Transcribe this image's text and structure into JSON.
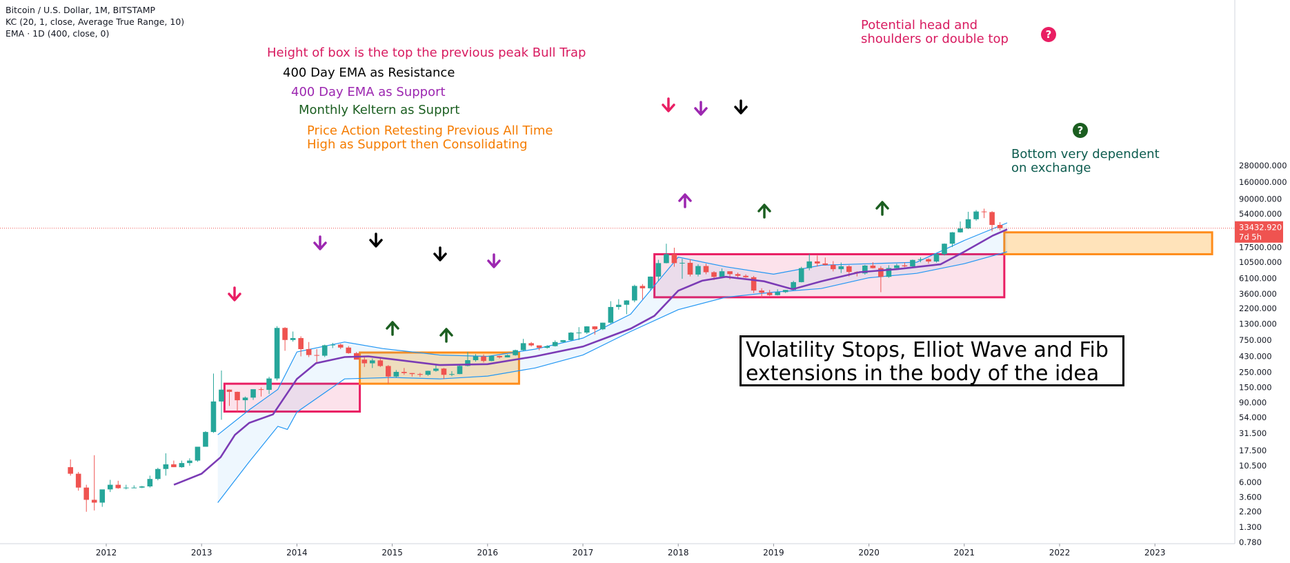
{
  "legend": {
    "symbol": "Bitcoin / U.S. Dollar, 1M, BITSTAMP",
    "kc": "KC (20, 1, close, Average True Range, 10)",
    "ema": "EMA · 1D (400, close, 0)"
  },
  "annotations": {
    "bull_trap": "Height of box is the top the previous peak Bull Trap",
    "ema_resistance": "400 Day EMA as Resistance",
    "ema_support": "400 Day EMA as Support",
    "keltner_support": "Monthly Keltern as Supprt",
    "retest_line1": "Price Action Retesting Previous All Time",
    "retest_line2": "High as Support then Consolidating",
    "hs_line1": "Potential head and",
    "hs_line2": "shoulders or double top",
    "bottom_line1": "Bottom very dependent",
    "bottom_line2": "on exchange",
    "note_line1": "Volatility Stops, Elliot Wave and Fib",
    "note_line2": "extensions in the body of the idea",
    "question_mark": "?"
  },
  "colors": {
    "bull": "#26a69a",
    "bear": "#ef5350",
    "ema": "#7b3bb5",
    "keltner": "#2196f3",
    "pink": "#e91e63",
    "orange": "#ff8c1a",
    "purple_text": "#9c27b0",
    "green_text": "#1b5e20",
    "teal_text": "#0d5c4f",
    "axis_text": "#131722"
  },
  "price_label": {
    "value": "33432.920",
    "countdown": "7d 5h"
  },
  "chart_data": {
    "type": "candlestick",
    "title": "Bitcoin / U.S. Dollar, 1M, BITSTAMP",
    "y_scale": "log",
    "y_ticks": [
      "280000.000",
      "160000.000",
      "90000.000",
      "54000.000",
      "33432.920",
      "17500.000",
      "10500.000",
      "6100.000",
      "3600.000",
      "2200.000",
      "1300.000",
      "750.000",
      "430.000",
      "250.000",
      "150.000",
      "90.000",
      "54.000",
      "31.500",
      "17.500",
      "10.500",
      "6.000",
      "3.600",
      "2.200",
      "1.300",
      "0.780"
    ],
    "x_ticks": [
      "2012",
      "2013",
      "2014",
      "2015",
      "2016",
      "2017",
      "2018",
      "2019",
      "2020",
      "2021",
      "2022",
      "2023"
    ],
    "start": "2011-08",
    "candles": [
      [
        10.0,
        13.0,
        7.5,
        8.0
      ],
      [
        8.0,
        8.5,
        4.5,
        5.0
      ],
      [
        5.0,
        5.5,
        2.2,
        3.3
      ],
      [
        3.3,
        15.0,
        2.3,
        3.0
      ],
      [
        3.0,
        4.5,
        2.6,
        4.7
      ],
      [
        4.7,
        6.5,
        4.3,
        5.5
      ],
      [
        5.5,
        6.3,
        4.8,
        4.9
      ],
      [
        4.9,
        5.5,
        4.7,
        5.0
      ],
      [
        5.0,
        5.4,
        4.9,
        5.0
      ],
      [
        5.0,
        5.3,
        4.9,
        5.2
      ],
      [
        5.2,
        7.5,
        5.0,
        6.7
      ],
      [
        6.7,
        9.8,
        6.4,
        9.4
      ],
      [
        9.4,
        16.0,
        7.5,
        11.0
      ],
      [
        11.0,
        12.5,
        10.0,
        10.0
      ],
      [
        10.0,
        12.5,
        9.8,
        11.5
      ],
      [
        11.5,
        13.5,
        10.5,
        12.5
      ],
      [
        12.5,
        20.0,
        12.0,
        20.0
      ],
      [
        20.0,
        34.0,
        20.0,
        33.0
      ],
      [
        33.0,
        240.0,
        32.0,
        93.0
      ],
      [
        93.0,
        266.0,
        50.0,
        139.0
      ],
      [
        139.0,
        140.0,
        80.0,
        129.0
      ],
      [
        129.0,
        130.0,
        65.0,
        97.0
      ],
      [
        97.0,
        110.0,
        66.0,
        106.0
      ],
      [
        106.0,
        140.0,
        98.0,
        141.0
      ],
      [
        141.0,
        150.0,
        110.0,
        138.0
      ],
      [
        138.0,
        215.0,
        120.0,
        203.0
      ],
      [
        203.0,
        1200.0,
        190.0,
        1130.0
      ],
      [
        1130.0,
        1160.0,
        520.0,
        750.0
      ],
      [
        750.0,
        1000.0,
        710.0,
        800.0
      ],
      [
        800.0,
        850.0,
        430.0,
        550.0
      ],
      [
        550.0,
        700.0,
        420.0,
        450.0
      ],
      [
        450.0,
        550.0,
        350.0,
        440.0
      ],
      [
        440.0,
        640.0,
        420.0,
        627.0
      ],
      [
        627.0,
        680.0,
        570.0,
        640.0
      ],
      [
        640.0,
        660.0,
        550.0,
        580.0
      ],
      [
        580.0,
        610.0,
        470.0,
        480.0
      ],
      [
        480.0,
        500.0,
        400.0,
        385.0
      ],
      [
        385.0,
        425.0,
        300.0,
        340.0
      ],
      [
        340.0,
        400.0,
        290.0,
        375.0
      ],
      [
        375.0,
        400.0,
        300.0,
        310.0
      ],
      [
        310.0,
        320.0,
        170.0,
        217.0
      ],
      [
        217.0,
        270.0,
        210.0,
        254.0
      ],
      [
        254.0,
        290.0,
        230.0,
        244.0
      ],
      [
        244.0,
        245.0,
        217.0,
        236.0
      ],
      [
        236.0,
        246.0,
        215.0,
        230.0
      ],
      [
        230.0,
        265.0,
        222.0,
        263.0
      ],
      [
        263.0,
        320.0,
        255.0,
        284.0
      ],
      [
        284.0,
        290.0,
        199.0,
        230.0
      ],
      [
        230.0,
        260.0,
        220.0,
        236.0
      ],
      [
        236.0,
        330.0,
        235.0,
        311.0
      ],
      [
        311.0,
        500.0,
        306.0,
        378.0
      ],
      [
        378.0,
        465.0,
        360.0,
        430.0
      ],
      [
        430.0,
        460.0,
        350.0,
        368.0
      ],
      [
        368.0,
        440.0,
        365.0,
        436.0
      ],
      [
        436.0,
        440.0,
        400.0,
        416.0
      ],
      [
        416.0,
        460.0,
        415.0,
        448.0
      ],
      [
        448.0,
        540.0,
        440.0,
        531.0
      ],
      [
        531.0,
        780.0,
        520.0,
        673.0
      ],
      [
        673.0,
        700.0,
        600.0,
        624.0
      ],
      [
        624.0,
        620.0,
        530.0,
        575.0
      ],
      [
        575.0,
        630.0,
        560.0,
        609.0
      ],
      [
        609.0,
        740.0,
        600.0,
        700.0
      ],
      [
        700.0,
        750.0,
        690.0,
        745.0
      ],
      [
        745.0,
        980.0,
        730.0,
        963.0
      ],
      [
        963.0,
        1160.0,
        750.0,
        965.0
      ],
      [
        965.0,
        1200.0,
        920.0,
        1190.0
      ],
      [
        1190.0,
        1200.0,
        900.0,
        1080.0
      ],
      [
        1080.0,
        1350.0,
        1050.0,
        1350.0
      ],
      [
        1350.0,
        2800.0,
        1300.0,
        2300.0
      ],
      [
        2300.0,
        3000.0,
        2100.0,
        2480.0
      ],
      [
        2480.0,
        2900.0,
        1800.0,
        2870.0
      ],
      [
        2870.0,
        4900.0,
        2700.0,
        4700.0
      ],
      [
        4700.0,
        5000.0,
        2980.0,
        4340.0
      ],
      [
        4340.0,
        6470.0,
        4100.0,
        6450.0
      ],
      [
        6450.0,
        11400.0,
        5500.0,
        10200.0
      ],
      [
        10200.0,
        19700.0,
        10100.0,
        13800.0
      ],
      [
        13800.0,
        17200.0,
        9000.0,
        10200.0
      ],
      [
        10200.0,
        11800.0,
        6000.0,
        10300.0
      ],
      [
        10300.0,
        11700.0,
        6500.0,
        6920.0
      ],
      [
        6920.0,
        9800.0,
        6500.0,
        9240.0
      ],
      [
        9240.0,
        10000.0,
        7000.0,
        7490.0
      ],
      [
        7490.0,
        7760.0,
        5750.0,
        6390.0
      ],
      [
        6390.0,
        8500.0,
        6070.0,
        7730.0
      ],
      [
        7730.0,
        7680.0,
        5880.0,
        7020.0
      ],
      [
        7020.0,
        7400.0,
        6100.0,
        6630.0
      ],
      [
        6630.0,
        6960.0,
        6200.0,
        6320.0
      ],
      [
        6320.0,
        6600.0,
        3700.0,
        4020.0
      ],
      [
        4020.0,
        4340.0,
        3150.0,
        3740.0
      ],
      [
        3740.0,
        4100.0,
        3350.0,
        3440.0
      ],
      [
        3440.0,
        4200.0,
        3400.0,
        3810.0
      ],
      [
        3810.0,
        4100.0,
        3700.0,
        4100.0
      ],
      [
        4100.0,
        5600.0,
        4050.0,
        5350.0
      ],
      [
        5350.0,
        9000.0,
        5300.0,
        8600.0
      ],
      [
        8600.0,
        13900.0,
        8000.0,
        10800.0
      ],
      [
        10800.0,
        13200.0,
        9100.0,
        10080.0
      ],
      [
        10080.0,
        12300.0,
        9400.0,
        9600.0
      ],
      [
        9600.0,
        10900.0,
        7700.0,
        8300.0
      ],
      [
        8300.0,
        10400.0,
        7300.0,
        9150.0
      ],
      [
        9150.0,
        9500.0,
        6500.0,
        7560.0
      ],
      [
        7560.0,
        7750.0,
        6500.0,
        7200.0
      ],
      [
        7200.0,
        9600.0,
        6900.0,
        9380.0
      ],
      [
        9380.0,
        10500.0,
        8500.0,
        8600.0
      ],
      [
        8600.0,
        9200.0,
        3800.0,
        6400.0
      ],
      [
        6400.0,
        9500.0,
        6200.0,
        8620.0
      ],
      [
        8620.0,
        10000.0,
        8100.0,
        9440.0
      ],
      [
        9440.0,
        10400.0,
        8900.0,
        9140.0
      ],
      [
        9140.0,
        11500.0,
        9000.0,
        11350.0
      ],
      [
        11350.0,
        12400.0,
        10500.0,
        11650.0
      ],
      [
        11650.0,
        12000.0,
        10000.0,
        10780.0
      ],
      [
        10780.0,
        14000.0,
        10400.0,
        13800.0
      ],
      [
        13800.0,
        19900.0,
        13200.0,
        19700.0
      ],
      [
        19700.0,
        29300.0,
        17600.0,
        29000.0
      ],
      [
        29000.0,
        41900.0,
        28700.0,
        33100.0
      ],
      [
        33100.0,
        58300.0,
        32400.0,
        45200.0
      ],
      [
        45200.0,
        61800.0,
        43000.0,
        58800.0
      ],
      [
        58800.0,
        64800.0,
        47000.0,
        57700.0
      ],
      [
        57700.0,
        59500.0,
        30000.0,
        37300.0
      ],
      [
        37300.0,
        41000.0,
        31000.0,
        33400.0
      ]
    ],
    "ema_400d": [
      [
        2012.71,
        5.5
      ],
      [
        2013.0,
        8.0
      ],
      [
        2013.2,
        14.0
      ],
      [
        2013.35,
        30.0
      ],
      [
        2013.5,
        45.0
      ],
      [
        2013.75,
        60.0
      ],
      [
        2014.0,
        200.0
      ],
      [
        2014.2,
        340.0
      ],
      [
        2014.5,
        420.0
      ],
      [
        2014.75,
        430.0
      ],
      [
        2015.0,
        390.0
      ],
      [
        2015.5,
        320.0
      ],
      [
        2016.0,
        330.0
      ],
      [
        2016.5,
        430.0
      ],
      [
        2017.0,
        600.0
      ],
      [
        2017.5,
        1100.0
      ],
      [
        2017.75,
        1700.0
      ],
      [
        2018.0,
        4000.0
      ],
      [
        2018.25,
        5600.0
      ],
      [
        2018.5,
        6400.0
      ],
      [
        2018.9,
        5500.0
      ],
      [
        2019.2,
        4200.0
      ],
      [
        2019.5,
        5500.0
      ],
      [
        2019.9,
        7500.0
      ],
      [
        2020.3,
        8300.0
      ],
      [
        2020.75,
        9800.0
      ],
      [
        2021.0,
        15000.0
      ],
      [
        2021.3,
        26000.0
      ],
      [
        2021.45,
        32000.0
      ]
    ],
    "keltner": {
      "upper": [
        [
          2013.17,
          30.0
        ],
        [
          2013.5,
          70.0
        ],
        [
          2013.8,
          140.0
        ],
        [
          2014.0,
          500.0
        ],
        [
          2014.5,
          700.0
        ],
        [
          2014.9,
          560.0
        ],
        [
          2015.5,
          450.0
        ],
        [
          2016.0,
          430.0
        ],
        [
          2016.5,
          550.0
        ],
        [
          2017.0,
          800.0
        ],
        [
          2017.5,
          1800.0
        ],
        [
          2018.0,
          12500.0
        ],
        [
          2018.5,
          9000.0
        ],
        [
          2019.0,
          7000.0
        ],
        [
          2019.5,
          9500.0
        ],
        [
          2020.0,
          10000.0
        ],
        [
          2020.5,
          10500.0
        ],
        [
          2021.0,
          22000.0
        ],
        [
          2021.45,
          40000.0
        ]
      ],
      "lower": [
        [
          2013.17,
          3.0
        ],
        [
          2013.5,
          12.0
        ],
        [
          2013.8,
          40.0
        ],
        [
          2013.9,
          36.0
        ],
        [
          2014.0,
          65.0
        ],
        [
          2014.5,
          200.0
        ],
        [
          2015.0,
          210.0
        ],
        [
          2015.5,
          200.0
        ],
        [
          2016.0,
          220.0
        ],
        [
          2016.5,
          290.0
        ],
        [
          2017.0,
          450.0
        ],
        [
          2017.5,
          1000.0
        ],
        [
          2018.0,
          2100.0
        ],
        [
          2018.5,
          3200.0
        ],
        [
          2019.0,
          3800.0
        ],
        [
          2019.5,
          4300.0
        ],
        [
          2020.0,
          6200.0
        ],
        [
          2020.5,
          7200.0
        ],
        [
          2021.0,
          10000.0
        ],
        [
          2021.45,
          15000.0
        ]
      ]
    },
    "boxes": [
      {
        "color": "pink",
        "x0": 2013.24,
        "x1": 2014.66,
        "y0": 66.0,
        "y1": 170.0
      },
      {
        "color": "orange",
        "x0": 2014.66,
        "x1": 2016.33,
        "y0": 170.0,
        "y1": 490.0
      },
      {
        "color": "pink",
        "x0": 2017.75,
        "x1": 2021.42,
        "y0": 3200.0,
        "y1": 13800.0
      },
      {
        "color": "orange",
        "x0": 2021.42,
        "x1": 2023.6,
        "y0": 13800.0,
        "y1": 29000.0
      }
    ]
  }
}
